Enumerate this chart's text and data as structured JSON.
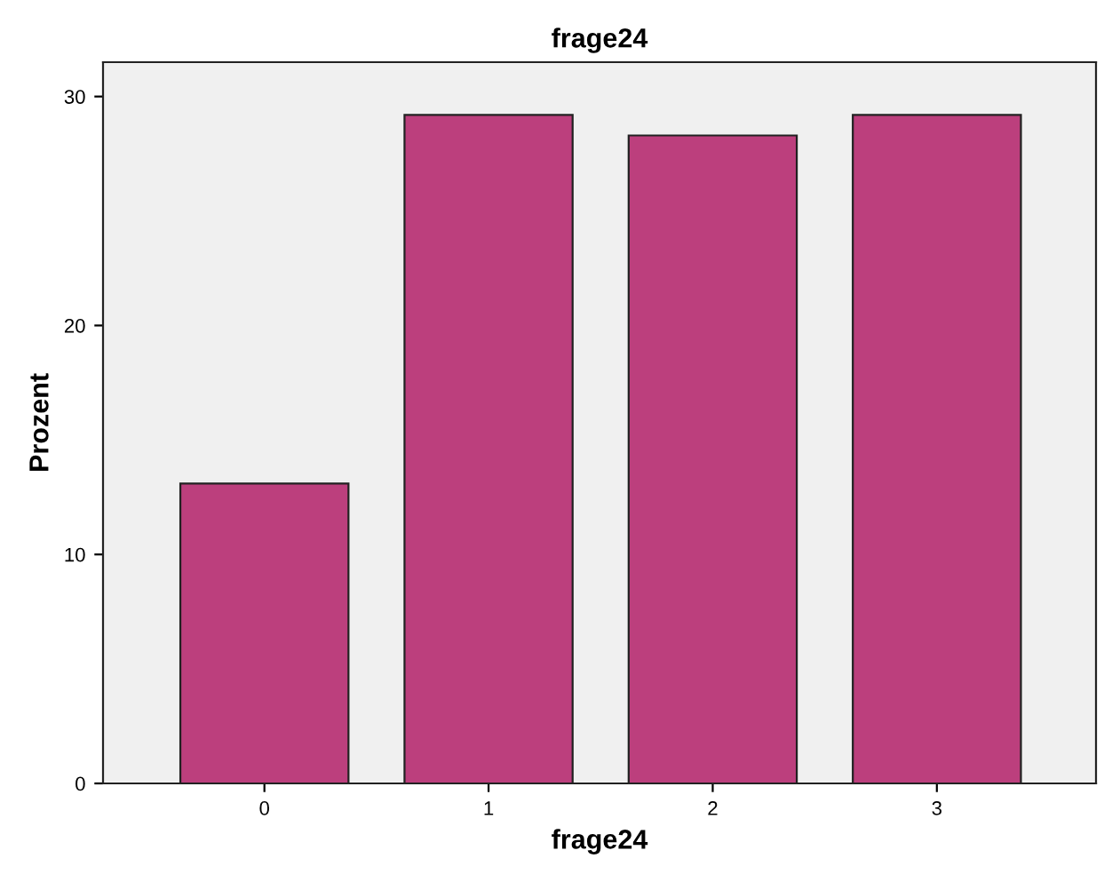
{
  "chart_data": {
    "type": "bar",
    "title": "frage24",
    "xlabel": "frage24",
    "ylabel": "Prozent",
    "categories": [
      "0",
      "1",
      "2",
      "3"
    ],
    "values": [
      13.1,
      29.2,
      28.3,
      29.2
    ],
    "color": "#bc3f7d",
    "ylim": [
      0,
      31.5
    ],
    "yticks": [
      0,
      10,
      20,
      30
    ],
    "grid": false,
    "legend": false
  }
}
